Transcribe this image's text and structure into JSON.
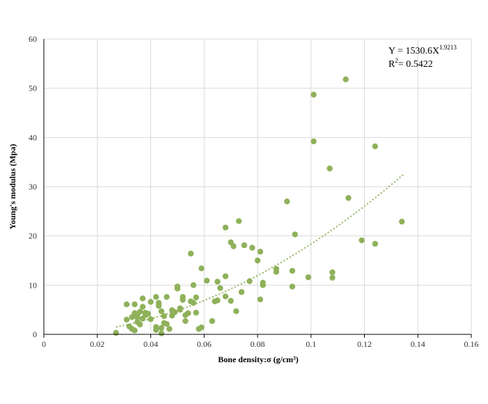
{
  "chart_data": {
    "type": "scatter",
    "title": "",
    "xlabel": "Bone density:σ (g/cm³)",
    "ylabel": "Young's modulus (Mpa)",
    "xlim": [
      0,
      0.16
    ],
    "ylim": [
      0,
      60
    ],
    "x_ticks": [
      0,
      0.02,
      0.04,
      0.06,
      0.08,
      0.1,
      0.12,
      0.14,
      0.16
    ],
    "x_tick_labels": [
      "0",
      "0.02",
      "0.04",
      "0.06",
      "0.08",
      "0.1",
      "0.12",
      "0.14",
      "0.16"
    ],
    "y_ticks": [
      0,
      10,
      20,
      30,
      40,
      50,
      60
    ],
    "y_tick_labels": [
      "0",
      "10",
      "20",
      "30",
      "40",
      "50",
      "60"
    ],
    "grid": true,
    "legend": "none",
    "marker_color": "#8fb15a",
    "trendline_color": "#8fb15a",
    "trendline": {
      "type": "power",
      "coefficient": 1530.6,
      "exponent": 1.9213,
      "x_range": [
        0.027,
        0.1345
      ],
      "eq_prefix": "Y = 1530.6X",
      "eq_exponent": "1.9213",
      "r2_prefix": "R",
      "r2_exponent": "2",
      "r2_value": "= 0.5422"
    },
    "points": [
      [
        0.027,
        0.3
      ],
      [
        0.031,
        3.0
      ],
      [
        0.031,
        6.1
      ],
      [
        0.032,
        1.6
      ],
      [
        0.033,
        1.1
      ],
      [
        0.033,
        3.5
      ],
      [
        0.034,
        4.3
      ],
      [
        0.034,
        6.1
      ],
      [
        0.034,
        0.8
      ],
      [
        0.035,
        2.5
      ],
      [
        0.035,
        3.4
      ],
      [
        0.035,
        4.0
      ],
      [
        0.036,
        2.0
      ],
      [
        0.036,
        4.6
      ],
      [
        0.037,
        3.2
      ],
      [
        0.037,
        7.3
      ],
      [
        0.037,
        5.6
      ],
      [
        0.038,
        4.4
      ],
      [
        0.038,
        3.9
      ],
      [
        0.039,
        4.2
      ],
      [
        0.04,
        6.6
      ],
      [
        0.04,
        3.1
      ],
      [
        0.042,
        7.6
      ],
      [
        0.042,
        0.9
      ],
      [
        0.042,
        1.5
      ],
      [
        0.043,
        5.8
      ],
      [
        0.043,
        6.4
      ],
      [
        0.044,
        4.7
      ],
      [
        0.044,
        0.2
      ],
      [
        0.044,
        1.3
      ],
      [
        0.045,
        2.3
      ],
      [
        0.045,
        3.7
      ],
      [
        0.046,
        7.6
      ],
      [
        0.046,
        2.1
      ],
      [
        0.047,
        1.1
      ],
      [
        0.048,
        3.8
      ],
      [
        0.048,
        4.9
      ],
      [
        0.049,
        4.5
      ],
      [
        0.05,
        9.7
      ],
      [
        0.05,
        9.3
      ],
      [
        0.051,
        5.3
      ],
      [
        0.051,
        5.0
      ],
      [
        0.052,
        7.6
      ],
      [
        0.052,
        7.0
      ],
      [
        0.053,
        2.7
      ],
      [
        0.053,
        3.9
      ],
      [
        0.054,
        4.3
      ],
      [
        0.055,
        16.4
      ],
      [
        0.055,
        6.7
      ],
      [
        0.056,
        6.4
      ],
      [
        0.056,
        10.0
      ],
      [
        0.057,
        7.5
      ],
      [
        0.057,
        4.4
      ],
      [
        0.058,
        1.1
      ],
      [
        0.059,
        13.4
      ],
      [
        0.059,
        1.4
      ],
      [
        0.061,
        10.9
      ],
      [
        0.063,
        2.7
      ],
      [
        0.064,
        6.7
      ],
      [
        0.065,
        6.9
      ],
      [
        0.065,
        10.7
      ],
      [
        0.066,
        9.4
      ],
      [
        0.068,
        21.7
      ],
      [
        0.068,
        7.7
      ],
      [
        0.068,
        11.8
      ],
      [
        0.07,
        18.7
      ],
      [
        0.07,
        6.8
      ],
      [
        0.071,
        17.9
      ],
      [
        0.072,
        4.7
      ],
      [
        0.073,
        23.0
      ],
      [
        0.074,
        8.6
      ],
      [
        0.075,
        18.1
      ],
      [
        0.077,
        10.8
      ],
      [
        0.078,
        17.6
      ],
      [
        0.08,
        15.0
      ],
      [
        0.081,
        16.8
      ],
      [
        0.081,
        7.1
      ],
      [
        0.082,
        10.0
      ],
      [
        0.082,
        10.5
      ],
      [
        0.087,
        13.3
      ],
      [
        0.087,
        12.7
      ],
      [
        0.091,
        27.0
      ],
      [
        0.093,
        9.7
      ],
      [
        0.093,
        12.9
      ],
      [
        0.094,
        20.3
      ],
      [
        0.099,
        11.6
      ],
      [
        0.101,
        48.7
      ],
      [
        0.101,
        39.2
      ],
      [
        0.107,
        33.7
      ],
      [
        0.108,
        11.5
      ],
      [
        0.108,
        12.6
      ],
      [
        0.113,
        51.8
      ],
      [
        0.114,
        27.7
      ],
      [
        0.119,
        19.1
      ],
      [
        0.124,
        38.2
      ],
      [
        0.124,
        18.4
      ],
      [
        0.134,
        22.9
      ]
    ]
  }
}
